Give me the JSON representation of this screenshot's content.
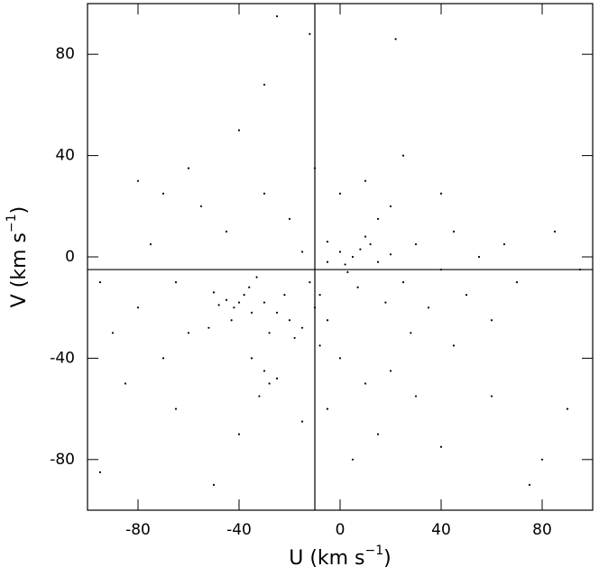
{
  "chart_data": {
    "type": "scatter",
    "xlabel": {
      "text": "U  (km s",
      "superscript": "−1",
      "close": ")"
    },
    "ylabel": {
      "text": "V  (km s",
      "superscript": "−1",
      "close": ")"
    },
    "xlim": [
      -100,
      100
    ],
    "ylim": [
      -100,
      100
    ],
    "xticks": [
      -80,
      -40,
      0,
      40,
      80
    ],
    "yticks": [
      -80,
      -40,
      0,
      40,
      80
    ],
    "vlines": [
      -10
    ],
    "hlines": [
      -5
    ],
    "series": [
      {
        "color": "#000000",
        "x": [
          -40,
          -42,
          -38,
          -45,
          -35,
          -48,
          -36,
          -30,
          -43,
          -50,
          5,
          8,
          2,
          12,
          0,
          -5,
          15,
          10,
          3,
          20,
          -20,
          -15,
          -25,
          -18,
          -10,
          -22,
          -12,
          -8,
          -28,
          -5,
          -30,
          -28,
          -35,
          -25,
          -32,
          25,
          30,
          35,
          40,
          45,
          50,
          55,
          60,
          65,
          70,
          -60,
          -65,
          -70,
          -75,
          -80,
          -85,
          -90,
          -55,
          -60,
          -70,
          0,
          10,
          20,
          -5,
          15,
          30,
          -15,
          5,
          40,
          -40,
          0,
          10,
          -10,
          20,
          -20,
          25,
          -30,
          40,
          -45,
          15,
          -25,
          -12,
          22,
          -30,
          -40,
          80,
          90,
          -95,
          75,
          -50,
          60,
          85,
          95,
          -95,
          -80,
          -5,
          -15,
          -8,
          7,
          18,
          -33,
          -52,
          28,
          45,
          -65
        ],
        "values": [
          -18,
          -20,
          -15,
          -17,
          -22,
          -19,
          -12,
          -18,
          -25,
          -14,
          0,
          3,
          -3,
          5,
          2,
          6,
          -2,
          8,
          -6,
          1,
          -25,
          -28,
          -22,
          -32,
          -20,
          -15,
          -10,
          -15,
          -30,
          -25,
          -45,
          -50,
          -40,
          -48,
          -55,
          -10,
          5,
          -20,
          -5,
          10,
          -15,
          0,
          -25,
          5,
          -10,
          -30,
          -10,
          -40,
          5,
          -20,
          -50,
          -30,
          20,
          35,
          25,
          -40,
          -50,
          -45,
          -60,
          -70,
          -55,
          -65,
          -80,
          -75,
          -70,
          25,
          30,
          35,
          20,
          15,
          40,
          25,
          25,
          10,
          15,
          95,
          88,
          86,
          68,
          50,
          -80,
          -60,
          -85,
          -90,
          -90,
          -55,
          10,
          -5,
          -10,
          30,
          -2,
          2,
          -35,
          -12,
          -18,
          -8,
          -28,
          -30,
          -35,
          -60
        ]
      }
    ]
  }
}
